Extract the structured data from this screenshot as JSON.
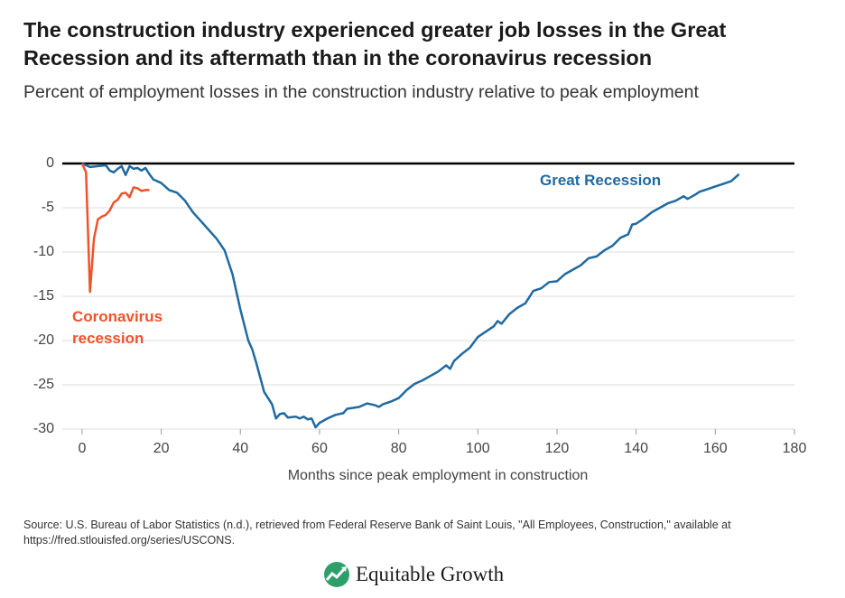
{
  "chart_data": {
    "type": "line",
    "title": "The construction industry experienced greater job losses in the Great Recession and its aftermath than in the coronavirus recession",
    "subtitle": "Percent of employment losses in the construction industry relative to peak employment",
    "x_label": "Months since peak employment in construction",
    "xlim": [
      -5,
      180
    ],
    "xticks": [
      0,
      20,
      40,
      60,
      80,
      100,
      120,
      140,
      160,
      180
    ],
    "ylim": [
      -30,
      0
    ],
    "yticks": [
      0,
      -5,
      -10,
      -15,
      -20,
      -25,
      -30
    ],
    "grid": true,
    "series": [
      {
        "name": "Great Recession",
        "color": "#1f6aa0",
        "x": [
          0,
          2,
          4,
          6,
          7,
          8,
          9,
          10,
          11,
          12,
          13,
          14,
          15,
          16,
          17,
          18,
          20,
          22,
          24,
          26,
          28,
          30,
          32,
          34,
          36,
          38,
          40,
          42,
          43,
          44,
          46,
          48,
          49,
          50,
          51,
          52,
          54,
          55,
          56,
          57,
          58,
          59,
          60,
          62,
          64,
          66,
          67,
          70,
          72,
          74,
          75,
          76,
          78,
          80,
          82,
          84,
          86,
          88,
          90,
          92,
          93,
          94,
          96,
          98,
          100,
          102,
          104,
          105,
          106,
          108,
          110,
          112,
          114,
          116,
          118,
          120,
          122,
          124,
          126,
          128,
          130,
          132,
          134,
          136,
          138,
          139,
          140,
          142,
          144,
          146,
          148,
          150,
          152,
          153,
          155,
          156,
          158,
          160,
          162,
          164,
          166
        ],
        "values": [
          0,
          -0.4,
          -0.3,
          -0.2,
          -0.8,
          -1.0,
          -0.6,
          -0.3,
          -1.3,
          -0.3,
          -0.6,
          -0.5,
          -0.8,
          -0.5,
          -1.2,
          -1.8,
          -2.2,
          -3.0,
          -3.3,
          -4.2,
          -5.5,
          -6.5,
          -7.5,
          -8.5,
          -9.8,
          -12.5,
          -16.5,
          -20.0,
          -21.0,
          -22.5,
          -25.8,
          -27.2,
          -28.8,
          -28.3,
          -28.2,
          -28.7,
          -28.6,
          -28.8,
          -28.6,
          -28.9,
          -28.8,
          -29.8,
          -29.3,
          -28.8,
          -28.4,
          -28.2,
          -27.7,
          -27.5,
          -27.1,
          -27.3,
          -27.5,
          -27.2,
          -26.9,
          -26.5,
          -25.6,
          -24.9,
          -24.5,
          -24.0,
          -23.5,
          -22.8,
          -23.2,
          -22.3,
          -21.5,
          -20.8,
          -19.6,
          -19.0,
          -18.4,
          -17.8,
          -18.1,
          -17.0,
          -16.3,
          -15.8,
          -14.4,
          -14.1,
          -13.4,
          -13.3,
          -12.5,
          -12.0,
          -11.5,
          -10.7,
          -10.5,
          -9.8,
          -9.3,
          -8.4,
          -8.0,
          -6.9,
          -6.8,
          -6.2,
          -5.5,
          -5.0,
          -4.5,
          -4.2,
          -3.7,
          -4.0,
          -3.5,
          -3.2,
          -2.9,
          -2.6,
          -2.3,
          -2.0,
          -1.2
        ]
      },
      {
        "name": "Coronavirus recession",
        "color": "#f0522a",
        "x": [
          0,
          1,
          2,
          3,
          4,
          5,
          6,
          7,
          8,
          9,
          10,
          11,
          12,
          13,
          14,
          15,
          16,
          17
        ],
        "values": [
          0,
          -1.0,
          -14.5,
          -8.5,
          -6.3,
          -6.0,
          -5.8,
          -5.3,
          -4.4,
          -4.1,
          -3.4,
          -3.3,
          -3.8,
          -2.7,
          -2.8,
          -3.1,
          -3.0,
          -3.0
        ]
      }
    ],
    "source": "Source: U.S. Bureau of Labor Statistics (n.d.), retrieved from Federal Reserve Bank of Saint Louis, \"All Employees, Construction,\" available at https://fred.stlouisfed.org/series/USCONS.",
    "brand": "Equitable Growth"
  }
}
